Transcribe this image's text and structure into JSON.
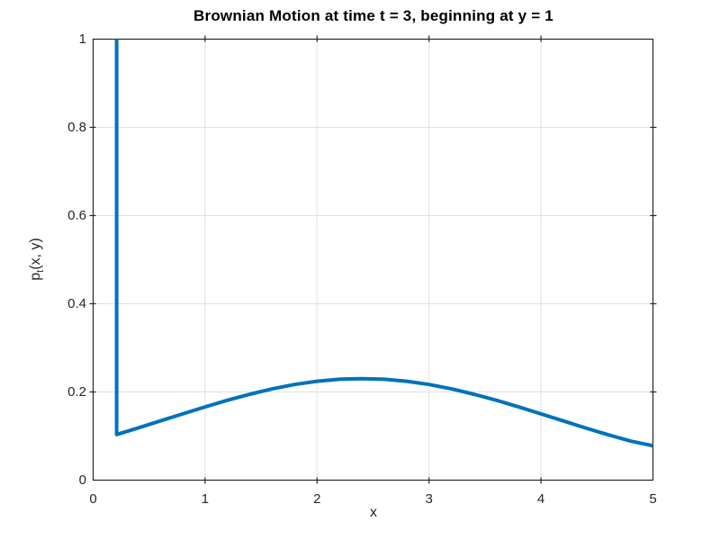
{
  "figure": {
    "background": "#ffffff",
    "frame_color": "#262626",
    "grid_color": "#e0e0e0",
    "text_color": "#262626",
    "title_color": "#000000"
  },
  "chart_data": {
    "type": "line",
    "title": "Brownian Motion at time t = 3, beginning at y = 1",
    "xlabel": "x",
    "ylabel": "pt(x, y)",
    "ylabel_parts": {
      "base": "p",
      "subscript": "t",
      "suffix": "(x, y)"
    },
    "xlim": [
      0,
      5
    ],
    "ylim": [
      0,
      1
    ],
    "x_tick_values": [
      0,
      1,
      2,
      3,
      4,
      5
    ],
    "x_tick_labels": [
      "0",
      "1",
      "2",
      "3",
      "4",
      "5"
    ],
    "y_tick_values": [
      0,
      0.2,
      0.4,
      0.6,
      0.8,
      1
    ],
    "y_tick_labels": [
      "0",
      "0.2",
      "0.4",
      "0.6",
      "0.8",
      "1"
    ],
    "grid": true,
    "legend": "none",
    "peak": {
      "x": 2.4,
      "y": 0.2303
    },
    "series": [
      {
        "name": "p_t(x, y)",
        "color": "#0072bd",
        "line_width": 4,
        "points": [
          [
            0.21,
            1.0
          ],
          [
            0.21,
            0.1035
          ],
          [
            0.4,
            0.1182
          ],
          [
            0.6,
            0.1342
          ],
          [
            0.8,
            0.1503
          ],
          [
            1.0,
            0.1661
          ],
          [
            1.2,
            0.1812
          ],
          [
            1.4,
            0.1949
          ],
          [
            1.6,
            0.207
          ],
          [
            1.8,
            0.2169
          ],
          [
            2.0,
            0.2242
          ],
          [
            2.2,
            0.2288
          ],
          [
            2.4,
            0.2303
          ],
          [
            2.6,
            0.2288
          ],
          [
            2.8,
            0.2242
          ],
          [
            3.0,
            0.2169
          ],
          [
            3.2,
            0.207
          ],
          [
            3.4,
            0.1949
          ],
          [
            3.6,
            0.1812
          ],
          [
            3.8,
            0.1661
          ],
          [
            4.0,
            0.1503
          ],
          [
            4.2,
            0.1342
          ],
          [
            4.4,
            0.1182
          ],
          [
            4.6,
            0.1028
          ],
          [
            4.8,
            0.0885
          ],
          [
            5.0,
            0.078
          ]
        ]
      }
    ]
  }
}
